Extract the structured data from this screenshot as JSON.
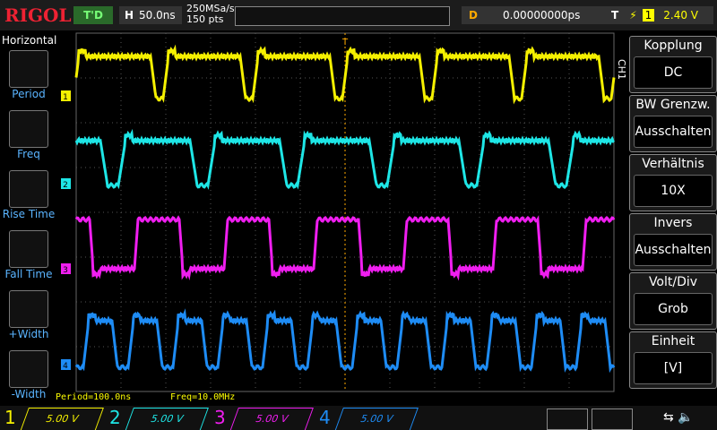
{
  "header": {
    "brand": "RIGOL",
    "mode": "T'D",
    "timebase_label": "H",
    "timebase": "50.0ns",
    "sample_rate": "250MSa/s",
    "points": "150 pts",
    "delay_label": "D",
    "delay": "0.00000000ps",
    "trigger_label": "T",
    "trigger_channel": "1",
    "trigger_level": "2.40 V"
  },
  "left_menu": {
    "title": "Horizontal",
    "items": [
      "Period",
      "Freq",
      "Rise Time",
      "Fall Time",
      "+Width",
      "-Width"
    ]
  },
  "right_menu": {
    "channel": "CH1",
    "items": [
      {
        "label": "Kopplung",
        "value": "DC"
      },
      {
        "label": "BW Grenzw.",
        "value": "Ausschalten"
      },
      {
        "label": "Verhältnis",
        "value": "10X"
      },
      {
        "label": "Invers",
        "value": "Ausschalten"
      },
      {
        "label": "Volt/Div",
        "value": "Grob"
      },
      {
        "label": "Einheit",
        "value": "[V]"
      }
    ]
  },
  "measurements": [
    "Period=100.0ns",
    "Freq=10.0MHz"
  ],
  "channels": [
    {
      "number": "1",
      "scale": "5.00 V",
      "color": "#f5f000"
    },
    {
      "number": "2",
      "scale": "5.00 V",
      "color": "#1ee6e6"
    },
    {
      "number": "3",
      "scale": "5.00 V",
      "color": "#f01ef0"
    },
    {
      "number": "4",
      "scale": "5.00 V",
      "color": "#1e8cf5"
    }
  ]
}
